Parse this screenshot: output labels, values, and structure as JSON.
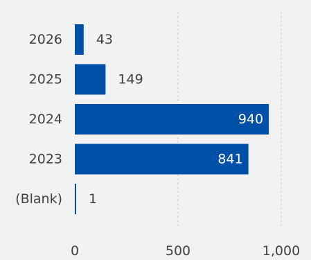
{
  "chart_data": {
    "type": "bar",
    "orientation": "horizontal",
    "categories": [
      "2026",
      "2025",
      "2024",
      "2023",
      "(Blank)"
    ],
    "values": [
      43,
      149,
      940,
      841,
      1
    ],
    "data_labels": [
      "43",
      "149",
      "940",
      "841",
      "1"
    ],
    "x_ticks": [
      0,
      500,
      1000
    ],
    "x_tick_labels": [
      "0",
      "500",
      "1,000"
    ],
    "xlim": [
      0,
      1000
    ],
    "title": "",
    "xlabel": "",
    "ylabel": "",
    "grid": true,
    "legend": "none",
    "colors": {
      "bar": "#0050a8",
      "label_outside": "#404040",
      "label_inside": "#ffffff",
      "axis_text": "#404040",
      "gridline": "#c8c8c8",
      "background": "#f2f2f2"
    }
  }
}
